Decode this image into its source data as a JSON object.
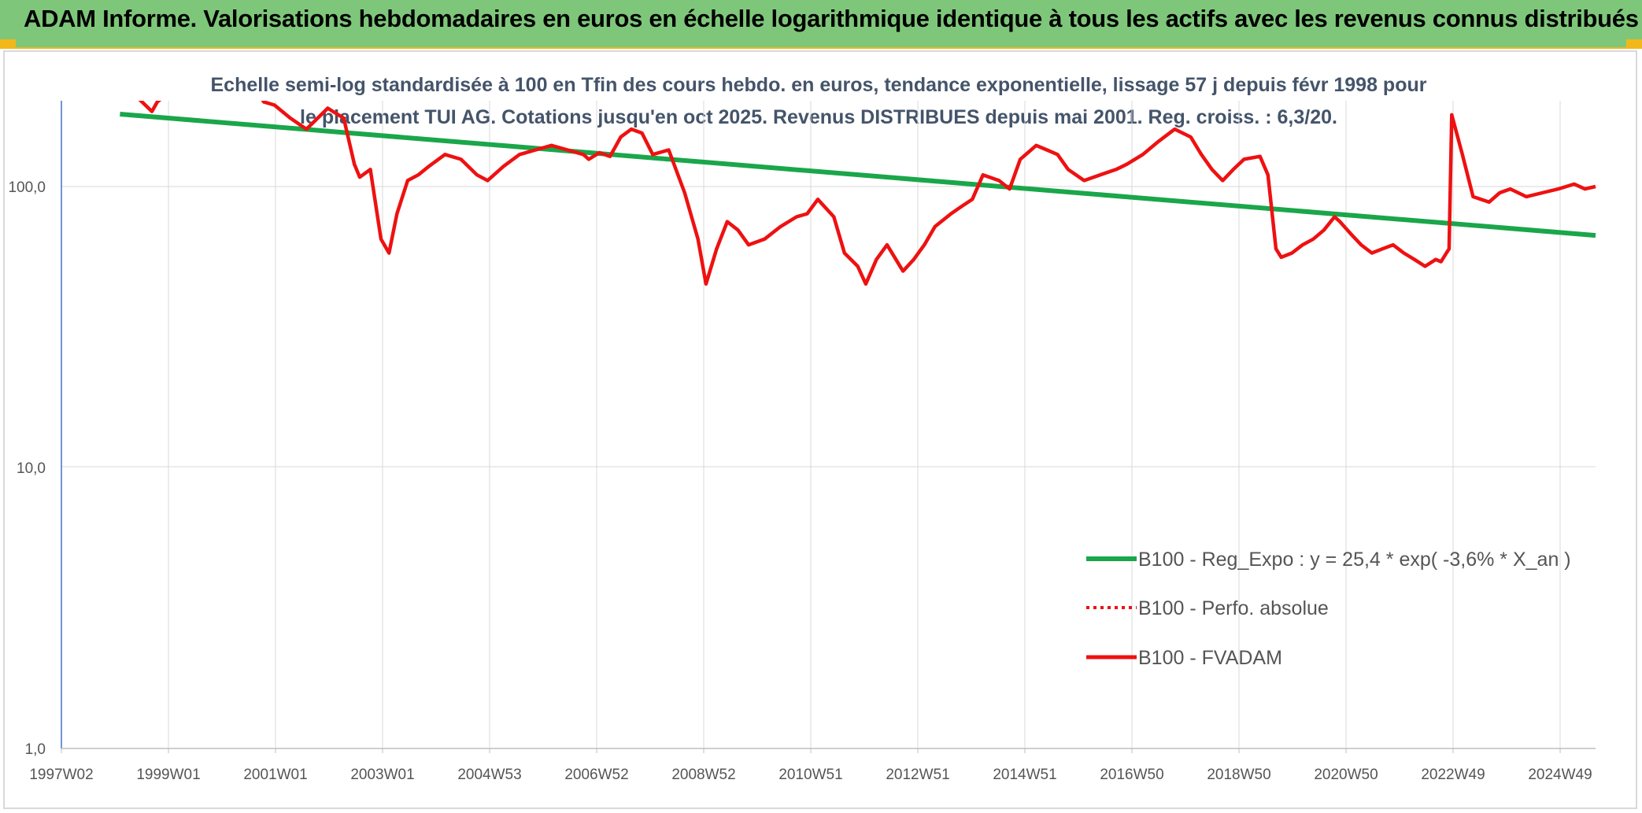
{
  "banner": {
    "title": "ADAM Informe. Valorisations hebdomadaires en euros en échelle logarithmique identique à tous les actifs avec les revenus connus distribués"
  },
  "colors": {
    "banner_bg": "#7ec77a",
    "accent": "#f2b81a",
    "regression": "#1aa64a",
    "fvadam": "#ee1111",
    "title": "#44546a"
  },
  "chart_data": {
    "type": "line",
    "title": "Echelle semi-log standardisée à 100 en Tfin des cours hebdo. en euros, tendance exponentielle, lissage 57 j depuis févr 1998 pour le placement TUI AG. Cotations jusqu'en oct 2025. Revenus DISTRIBUES depuis mai 2001. Reg. croiss. : 6,3/20.",
    "yscale": "log",
    "ylim": [
      1,
      200
    ],
    "y_ticks": [
      "1,0",
      "10,0",
      "100,0"
    ],
    "x_ticks": [
      "1997W02",
      "1999W01",
      "2001W01",
      "2003W01",
      "2004W53",
      "2006W52",
      "2008W52",
      "2010W51",
      "2012W51",
      "2014W51",
      "2016W50",
      "2018W50",
      "2020W50",
      "2022W49",
      "2024W49"
    ],
    "xlim": [
      1997.0,
      2025.8
    ],
    "grid": "vertical",
    "legend": {
      "placement": "bottom-right",
      "entries": [
        {
          "label": "B100 - Reg_Expo : y = 25,4 * exp( -3,6% *  X_an )",
          "style": "solid-green"
        },
        {
          "label": "B100 - Perfo. absolue",
          "style": "dotted-red"
        },
        {
          "label": "B100 - FVADAM",
          "style": "solid-red"
        }
      ]
    },
    "series": [
      {
        "name": "B100 - Reg_Expo : y = 25,4 * exp( -3,6% *  X_an )",
        "x": [
          1998.1,
          2025.8
        ],
        "y": [
          181,
          67
        ]
      },
      {
        "name": "B100 - FVADAM",
        "x": [
          1998.1,
          1998.4,
          1998.7,
          1998.8,
          1999.0,
          1999.3,
          1999.7,
          2000.2,
          2000.6,
          2000.8,
          2001.0,
          2001.3,
          2001.6,
          2002.0,
          2002.3,
          2002.5,
          2002.6,
          2002.8,
          2003.0,
          2003.15,
          2003.3,
          2003.5,
          2003.7,
          2003.9,
          2004.2,
          2004.5,
          2004.8,
          2005.0,
          2005.3,
          2005.6,
          2005.9,
          2006.2,
          2006.5,
          2006.8,
          2006.9,
          2007.1,
          2007.3,
          2007.5,
          2007.7,
          2007.9,
          2008.1,
          2008.4,
          2008.7,
          2008.95,
          2009.1,
          2009.3,
          2009.5,
          2009.7,
          2009.9,
          2010.2,
          2010.5,
          2010.8,
          2011.0,
          2011.2,
          2011.5,
          2011.7,
          2011.95,
          2012.1,
          2012.3,
          2012.5,
          2012.8,
          2013.0,
          2013.2,
          2013.4,
          2013.7,
          2013.9,
          2014.1,
          2014.3,
          2014.6,
          2014.8,
          2015.0,
          2015.3,
          2015.5,
          2015.7,
          2015.9,
          2016.2,
          2016.5,
          2016.8,
          2017.0,
          2017.3,
          2017.6,
          2017.9,
          2018.2,
          2018.4,
          2018.6,
          2018.8,
          2019.0,
          2019.2,
          2019.5,
          2019.65,
          2019.8,
          2019.9,
          2020.1,
          2020.3,
          2020.5,
          2020.7,
          2020.9,
          2021.0,
          2021.2,
          2021.4,
          2021.6,
          2021.8,
          2022.0,
          2022.2,
          2022.4,
          2022.6,
          2022.8,
          2022.9,
          2023.0,
          2023.05,
          2023.1,
          2023.3,
          2023.5,
          2023.8,
          2024.0,
          2024.2,
          2024.5,
          2024.8,
          2025.1,
          2025.4,
          2025.6,
          2025.8
        ],
        "y": [
          205,
          210,
          185,
          200,
          215,
          225,
          240,
          250,
          230,
          200,
          195,
          175,
          160,
          190,
          175,
          120,
          108,
          115,
          65,
          58,
          80,
          105,
          110,
          118,
          130,
          125,
          110,
          105,
          118,
          130,
          135,
          140,
          135,
          130,
          125,
          132,
          128,
          150,
          160,
          155,
          130,
          135,
          95,
          65,
          45,
          60,
          75,
          70,
          62,
          65,
          72,
          78,
          80,
          90,
          78,
          58,
          52,
          45,
          55,
          62,
          50,
          55,
          62,
          72,
          80,
          85,
          90,
          110,
          105,
          98,
          125,
          140,
          135,
          130,
          115,
          105,
          110,
          115,
          120,
          130,
          145,
          160,
          150,
          130,
          115,
          105,
          115,
          125,
          128,
          110,
          60,
          56,
          58,
          62,
          65,
          70,
          78,
          75,
          68,
          62,
          58,
          60,
          62,
          58,
          55,
          52,
          55,
          54,
          58,
          60,
          180,
          130,
          92,
          88,
          95,
          98,
          92,
          95,
          98,
          102,
          98,
          100
        ]
      }
    ]
  }
}
